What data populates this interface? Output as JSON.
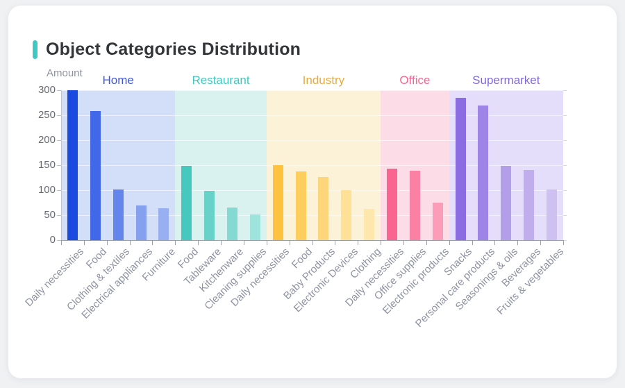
{
  "page": {
    "background_color": "#f0f1f3",
    "card_color": "#ffffff"
  },
  "header": {
    "title": "Object Categories Distribution",
    "accent_color": "#3fc9c2",
    "title_color": "#333639"
  },
  "chart_data": {
    "type": "bar",
    "title": "Object Categories Distribution",
    "xlabel": "",
    "ylabel": "Amount",
    "ylim": [
      0,
      300
    ],
    "y_ticks": [
      0,
      50,
      100,
      150,
      200,
      250,
      300
    ],
    "grid": true,
    "legend_position": "none",
    "groups": [
      {
        "name": "Home",
        "label_color": "#3b55e6",
        "band_color": "#d3def9",
        "bars": [
          {
            "category": "Daily necessities",
            "value": 300,
            "color": "#1a4ae0"
          },
          {
            "category": "Food",
            "value": 258,
            "color": "#4068e8"
          },
          {
            "category": "Clothing & textiles",
            "value": 102,
            "color": "#6486ec"
          },
          {
            "category": "Electrical appliances",
            "value": 69,
            "color": "#86a0f0"
          },
          {
            "category": "Furniture",
            "value": 64,
            "color": "#98aff2"
          }
        ]
      },
      {
        "name": "Restaurant",
        "label_color": "#3ec8be",
        "band_color": "#d9f1ef",
        "bars": [
          {
            "category": "Food",
            "value": 148,
            "color": "#46c8be"
          },
          {
            "category": "Tableware",
            "value": 98,
            "color": "#68d2c9"
          },
          {
            "category": "Kitchenware",
            "value": 65,
            "color": "#84dad3"
          },
          {
            "category": "Cleaning supplies",
            "value": 51,
            "color": "#9fe3dd"
          }
        ]
      },
      {
        "name": "Industry",
        "label_color": "#e9a93b",
        "band_color": "#fcf2d8",
        "bars": [
          {
            "category": "Daily necessities",
            "value": 150,
            "color": "#fdc240"
          },
          {
            "category": "Food",
            "value": 138,
            "color": "#fdcd5e"
          },
          {
            "category": "Baby Products",
            "value": 126,
            "color": "#fdd67b"
          },
          {
            "category": "Electronic Devices",
            "value": 100,
            "color": "#fee096"
          },
          {
            "category": "Clothing",
            "value": 63,
            "color": "#fee7ad"
          }
        ]
      },
      {
        "name": "Office",
        "label_color": "#f8638f",
        "band_color": "#fcdde7",
        "bars": [
          {
            "category": "Daily necessities",
            "value": 143,
            "color": "#fa6490"
          },
          {
            "category": "Office supplies",
            "value": 139,
            "color": "#fa81a3"
          },
          {
            "category": "Electronic products",
            "value": 75,
            "color": "#fb9db8"
          }
        ]
      },
      {
        "name": "Supermarket",
        "label_color": "#8168df",
        "band_color": "#e5defa",
        "bars": [
          {
            "category": "Snacks",
            "value": 285,
            "color": "#8b6ce2"
          },
          {
            "category": "Personal care products",
            "value": 270,
            "color": "#9e84e6"
          },
          {
            "category": "Seasonings & oils",
            "value": 148,
            "color": "#b39ee9"
          },
          {
            "category": "Beverages",
            "value": 140,
            "color": "#c0aeec"
          },
          {
            "category": "Fruits & vegetables",
            "value": 101,
            "color": "#cec0f0"
          }
        ]
      }
    ],
    "axis_style": {
      "y_tick_label_color": "#66696f",
      "x_tick_label_color": "#8e93a2",
      "axis_line_color": "#9aa0a8"
    }
  }
}
